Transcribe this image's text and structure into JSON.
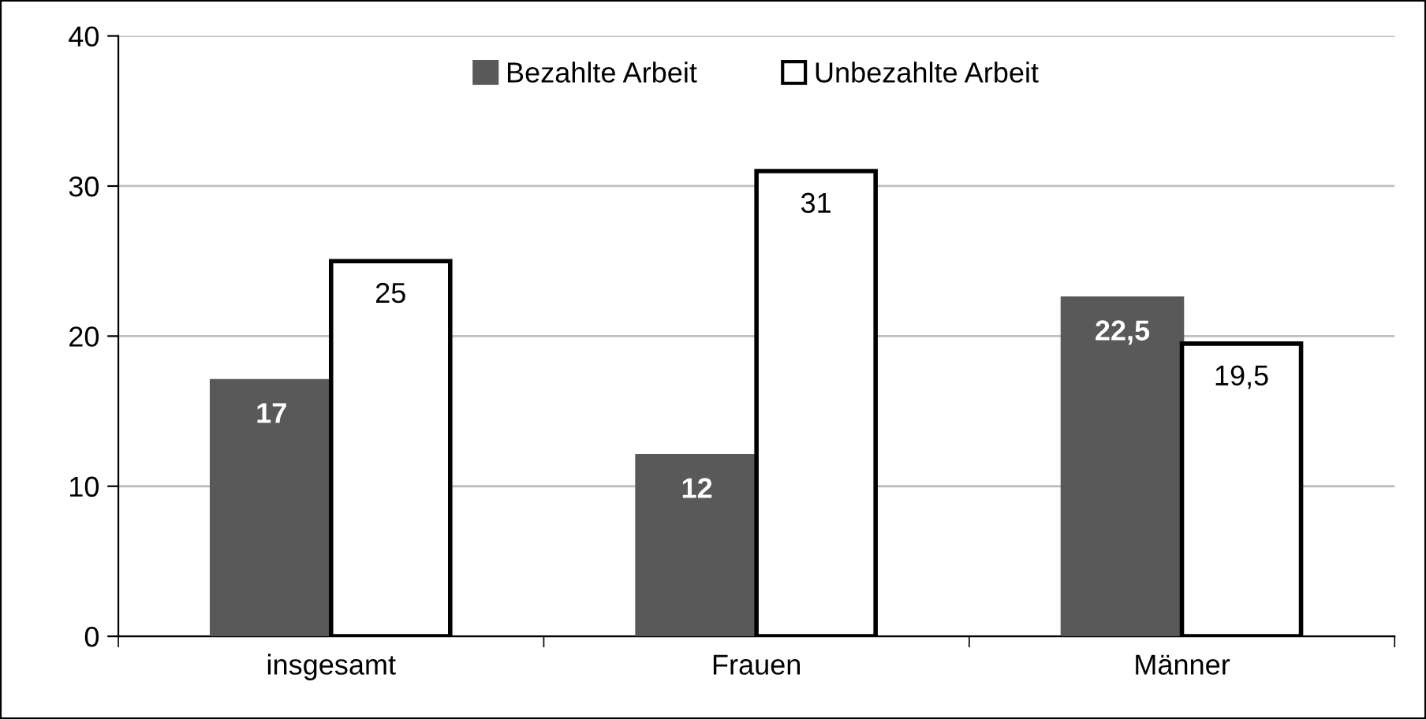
{
  "chart_data": {
    "type": "bar",
    "categories": [
      "insgesamt",
      "Frauen",
      "Männer"
    ],
    "series": [
      {
        "name": "Bezahlte Arbeit",
        "color": "#595959",
        "values": [
          17,
          12,
          22.5
        ],
        "value_labels": [
          "17",
          "12",
          "22,5"
        ]
      },
      {
        "name": "Unbezahlte Arbeit",
        "color": "#ffffff",
        "values": [
          25,
          31,
          19.5
        ],
        "value_labels": [
          "25",
          "31",
          "19,5"
        ]
      }
    ],
    "ylim": [
      0,
      40
    ],
    "yticks": [
      0,
      10,
      20,
      30,
      40
    ],
    "grid": "y",
    "legend": "top"
  }
}
